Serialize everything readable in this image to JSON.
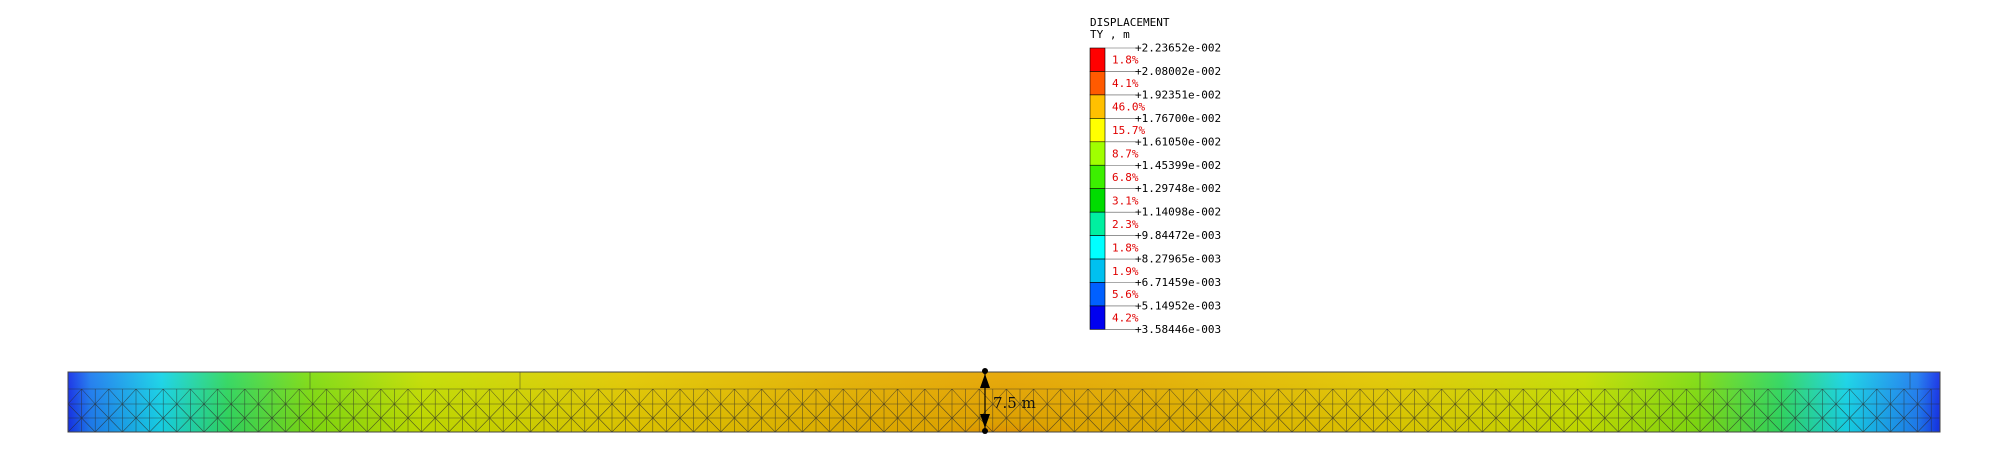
{
  "legend": {
    "title": "DISPLACEMENT",
    "subtitle": "TY , m",
    "values": [
      "+2.23652e-002",
      "+2.08002e-002",
      "+1.92351e-002",
      "+1.76700e-002",
      "+1.61050e-002",
      "+1.45399e-002",
      "+1.29748e-002",
      "+1.14098e-002",
      "+9.84472e-003",
      "+8.27965e-003",
      "+6.71459e-003",
      "+5.14952e-003",
      "+3.58446e-003"
    ],
    "percentages": [
      "1.8%",
      "4.1%",
      "46.0%",
      "15.7%",
      "8.7%",
      "6.8%",
      "3.1%",
      "2.3%",
      "1.8%",
      "1.9%",
      "5.6%",
      "4.2%"
    ],
    "colors": [
      "#ff0000",
      "#ff5a00",
      "#ffc000",
      "#ffff00",
      "#a0ff00",
      "#3cf000",
      "#00dc00",
      "#00f0a0",
      "#00ffff",
      "#00c0f0",
      "#0060ff",
      "#0000f0"
    ]
  },
  "dimension": {
    "label": "7.5 m"
  },
  "colors": {
    "mesh_line": "#2a2a2a",
    "beam_border": "#444444",
    "dimension_line": "#000000",
    "percent_text": "#e00000"
  }
}
